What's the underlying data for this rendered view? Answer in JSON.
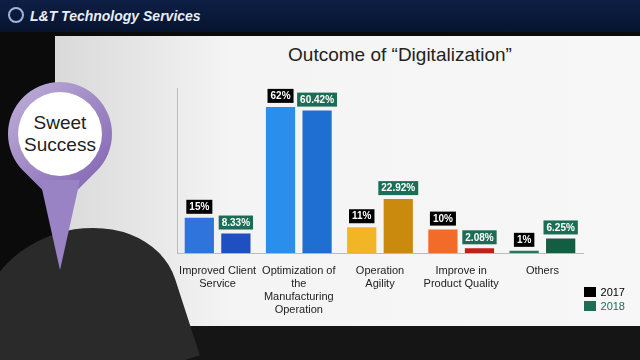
{
  "header": {
    "brand": "L&T Technology Services"
  },
  "badge": {
    "text": "Sweet Success"
  },
  "chart_data": {
    "type": "bar",
    "title": "Outcome of “Digitalization”",
    "categories": [
      "Improved Client Service",
      "Optimization of the Manufacturing Operation",
      "Operation Agility",
      "Improve in Product Quality",
      "Others"
    ],
    "series": [
      {
        "name": "2017",
        "color": "#000000",
        "colors": [
          "#2f74dd",
          "#2a8fec",
          "#f2b526",
          "#f26b2a",
          "#1f7d5c"
        ],
        "values": [
          15,
          62,
          11,
          10,
          1
        ],
        "value_labels": [
          "15%",
          "62%",
          "11%",
          "10%",
          "1%"
        ]
      },
      {
        "name": "2018",
        "color": "#1b6e55",
        "colors": [
          "#1f4fc0",
          "#1f6fd2",
          "#c98a0e",
          "#c0201a",
          "#145c42"
        ],
        "values": [
          8.33,
          60.42,
          22.92,
          2.08,
          6.25
        ],
        "value_labels": [
          "8.33%",
          "60.42%",
          "22.92%",
          "2.08%",
          "6.25%"
        ]
      }
    ],
    "ylim": [
      0,
      70
    ],
    "data_labels": true,
    "tick_labels": "x",
    "legend": "lower right",
    "grid": false
  }
}
